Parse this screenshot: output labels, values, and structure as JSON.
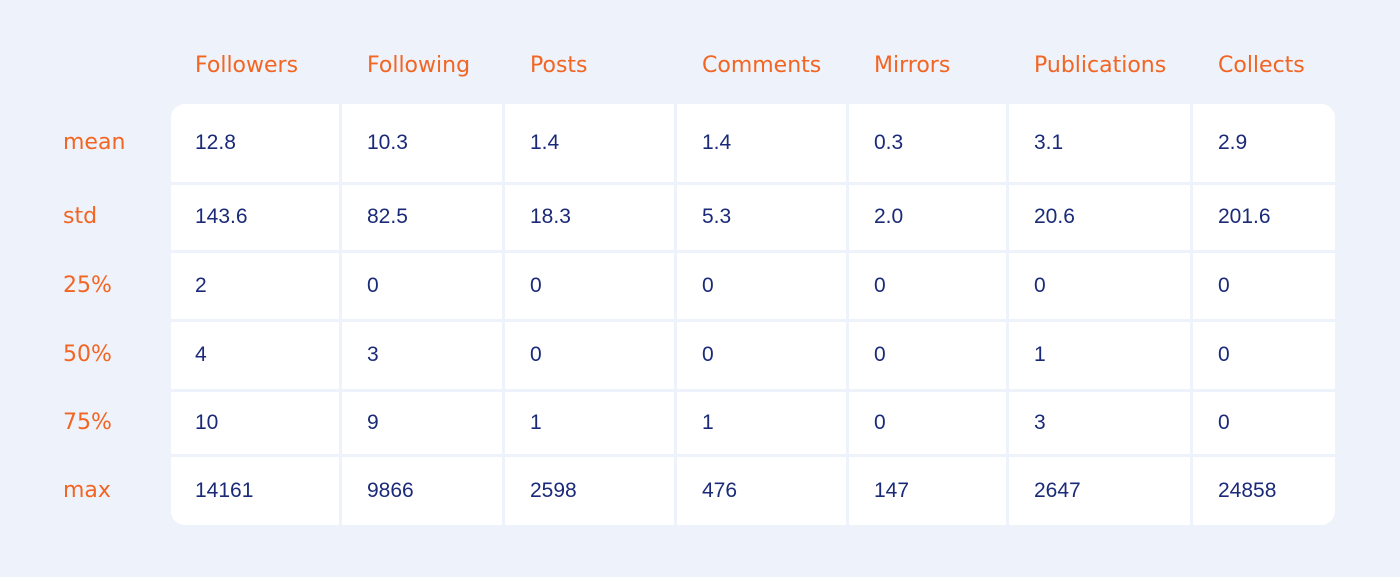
{
  "colors": {
    "background": "#eef2fa",
    "header_text": "#f26522",
    "cell_text": "#1a2a78",
    "cell_background": "#ffffff"
  },
  "chart_data": {
    "type": "table",
    "columns": [
      "Followers",
      "Following",
      "Posts",
      "Comments",
      "Mirrors",
      "Publications",
      "Collects"
    ],
    "rows": [
      {
        "label": "mean",
        "values": [
          "12.8",
          "10.3",
          "1.4",
          "1.4",
          "0.3",
          "3.1",
          "2.9"
        ]
      },
      {
        "label": "std",
        "values": [
          "143.6",
          "82.5",
          "18.3",
          "5.3",
          "2.0",
          "20.6",
          "201.6"
        ]
      },
      {
        "label": "25%",
        "values": [
          "2",
          "0",
          "0",
          "0",
          "0",
          "0",
          "0"
        ]
      },
      {
        "label": "50%",
        "values": [
          "4",
          "3",
          "0",
          "0",
          "0",
          "1",
          "0"
        ]
      },
      {
        "label": "75%",
        "values": [
          "10",
          "9",
          "1",
          "1",
          "0",
          "3",
          "0"
        ]
      },
      {
        "label": "max",
        "values": [
          "14161",
          "9866",
          "2598",
          "476",
          "147",
          "2647",
          "24858"
        ]
      }
    ]
  }
}
